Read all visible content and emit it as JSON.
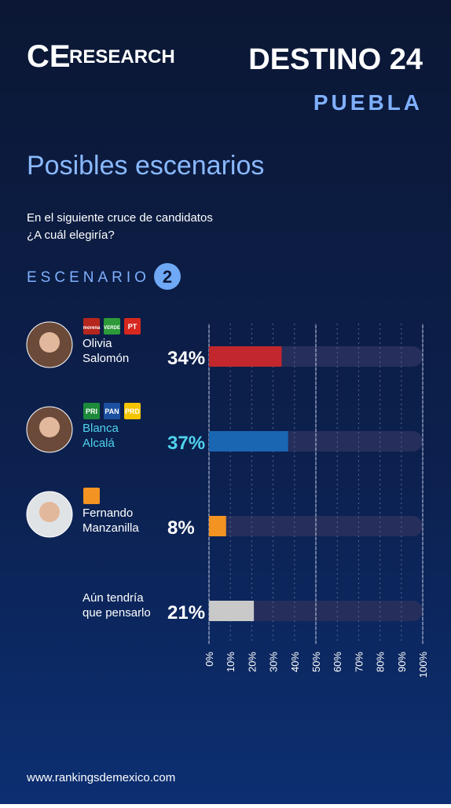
{
  "header": {
    "logo_left_a": "CE",
    "logo_left_b": "RESEARCH",
    "logo_right": "DESTINO 24",
    "region": "PUEBLA"
  },
  "chart_data": {
    "type": "bar",
    "orientation": "horizontal",
    "title": "Posibles escenarios",
    "subtitle": [
      "En el siguiente cruce de candidatos",
      "¿A cuál elegiría?"
    ],
    "scenario_label": "ESCENARIO",
    "scenario_number": "2",
    "categories": [
      "Olivia Salomón",
      "Blanca Alcalá",
      "Fernando Manzanilla",
      "Aún tendría que pensarlo"
    ],
    "parties": [
      [
        "morena",
        "VERDE",
        "PT"
      ],
      [
        "PRI",
        "PAN",
        "PRD"
      ],
      [],
      []
    ],
    "values": [
      34,
      37,
      8,
      21
    ],
    "value_labels": [
      "34%",
      "37%",
      "8%",
      "21%"
    ],
    "colors": [
      "#c1272d",
      "#1a66b3",
      "#f39322",
      "#c9c9c9"
    ],
    "label_colors": [
      "#ffffff",
      "#4fd3ee",
      "#ffffff",
      "#ffffff"
    ],
    "xlim": [
      0,
      100
    ],
    "xticks": [
      {
        "value": 0,
        "label": "0%"
      },
      {
        "value": 10,
        "label": "10%"
      },
      {
        "value": 20,
        "label": "20%"
      },
      {
        "value": 30,
        "label": "30%"
      },
      {
        "value": 40,
        "label": "40%"
      },
      {
        "value": 50,
        "label": "50%"
      },
      {
        "value": 60,
        "label": "60%"
      },
      {
        "value": 70,
        "label": "70%"
      },
      {
        "value": 80,
        "label": "80%"
      },
      {
        "value": 90,
        "label": "90%"
      },
      {
        "value": 100,
        "label": "100%"
      }
    ],
    "gridlines": [
      0,
      50,
      100
    ]
  },
  "footer": "www.rankingsdemexico.com"
}
